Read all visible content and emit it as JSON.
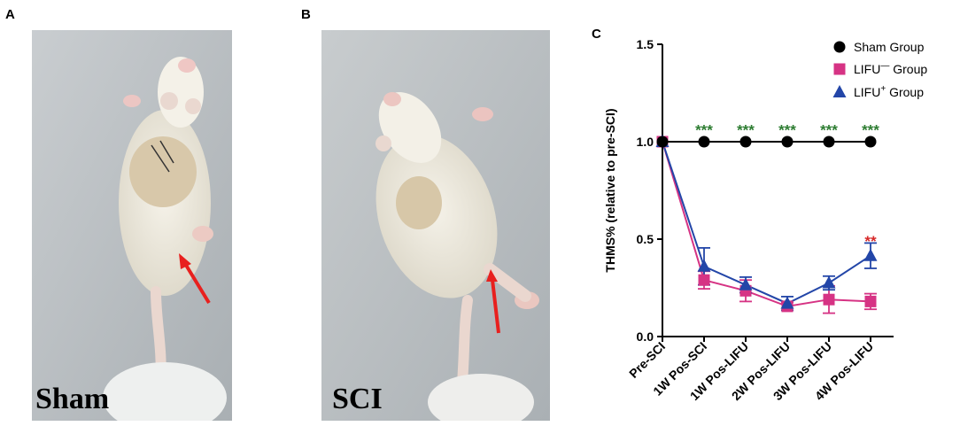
{
  "panels": {
    "a": {
      "letter": "A",
      "caption": "Sham"
    },
    "b": {
      "letter": "B",
      "caption": "SCI"
    },
    "c": {
      "letter": "C"
    }
  },
  "colors": {
    "sham": "#000000",
    "lifu_minus": "#d63384",
    "lifu_plus": "#2346a8",
    "sig_green": "#2e7d32",
    "sig_red": "#d62828",
    "arrow_red": "#e8201e"
  },
  "chart_data": {
    "type": "line",
    "ylabel": "THMS% (relative to pre-SCI)",
    "xlabel": "",
    "ylim": [
      0.0,
      1.5
    ],
    "yticks": [
      "0.0",
      "0.5",
      "1.0",
      "1.5"
    ],
    "categories": [
      "Pre-SCI",
      "1W Pos-SCI",
      "1W Pos-LIFU",
      "2W Pos-LIFU",
      "3W Pos-LIFU",
      "4W Pos-LIFU"
    ],
    "legend_position": "top-right",
    "series": [
      {
        "name_main": "Sham",
        "name_sup": "",
        "name_tail": "Group",
        "marker": "circle",
        "color": "#000000",
        "values": [
          1.0,
          1.0,
          1.0,
          1.0,
          1.0,
          1.0
        ],
        "errors": [
          0,
          0,
          0,
          0,
          0,
          0
        ]
      },
      {
        "name_main": "LIFU",
        "name_sup": "—",
        "name_tail": "Group",
        "marker": "square",
        "color": "#d63384",
        "values": [
          1.0,
          0.29,
          0.235,
          0.155,
          0.19,
          0.18
        ],
        "errors": [
          0,
          0.045,
          0.055,
          0.02,
          0.07,
          0.04
        ]
      },
      {
        "name_main": "LIFU",
        "name_sup": "+",
        "name_tail": "Group",
        "marker": "triangle",
        "color": "#2346a8",
        "values": [
          1.0,
          0.36,
          0.265,
          0.17,
          0.275,
          0.415
        ],
        "errors": [
          0,
          0.095,
          0.04,
          0.035,
          0.035,
          0.065
        ]
      }
    ],
    "annotations": [
      {
        "category": "1W Pos-SCI",
        "text": "***",
        "color": "#2e7d32",
        "y": 1.07
      },
      {
        "category": "1W Pos-LIFU",
        "text": "***",
        "color": "#2e7d32",
        "y": 1.07
      },
      {
        "category": "2W Pos-LIFU",
        "text": "***",
        "color": "#2e7d32",
        "y": 1.07
      },
      {
        "category": "3W Pos-LIFU",
        "text": "***",
        "color": "#2e7d32",
        "y": 1.07
      },
      {
        "category": "4W Pos-LIFU",
        "text": "***",
        "color": "#2e7d32",
        "y": 1.07
      },
      {
        "category": "4W Pos-LIFU",
        "text": "**",
        "color": "#d62828",
        "y": 0.5
      }
    ]
  }
}
